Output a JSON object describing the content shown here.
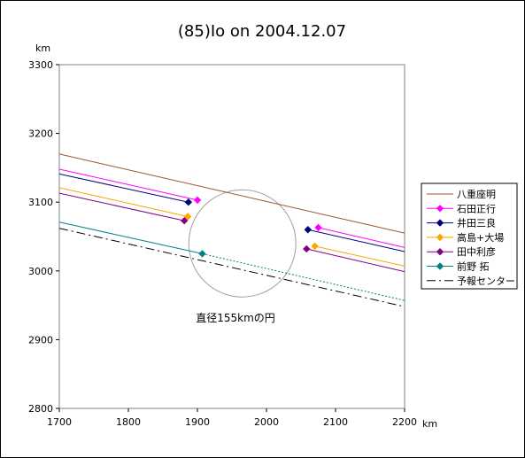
{
  "chart_data": {
    "type": "line",
    "title": "(85)Io on 2004.12.07",
    "xlabel": "km",
    "ylabel": "km",
    "xlim": [
      1700,
      2200
    ],
    "ylim": [
      2800,
      3300
    ],
    "xticks": [
      "1700",
      "1800",
      "1900",
      "2000",
      "2100",
      "2200"
    ],
    "yticks": [
      "2800",
      "2900",
      "3000",
      "3100",
      "3200",
      "3300"
    ],
    "grid": false,
    "legend_position": "right",
    "annotation": "直径155kmの円",
    "circle": {
      "center": [
        1965,
        3040
      ],
      "diameter": 155
    },
    "series": [
      {
        "name": "八重座明",
        "color": "#A0522D",
        "marker": "none",
        "segments": [
          {
            "x": [
              1700,
              2200
            ],
            "y": [
              3170,
              3055
            ]
          }
        ]
      },
      {
        "name": "石田正行",
        "color": "#FF00FF",
        "marker": "diamond",
        "segments": [
          {
            "x": [
              1700,
              1900
            ],
            "y": [
              3148,
              3103
            ]
          },
          {
            "x": [
              2075,
              2200
            ],
            "y": [
              3063,
              3034
            ]
          }
        ]
      },
      {
        "name": "井田三良",
        "color": "#000080",
        "marker": "diamond",
        "segments": [
          {
            "x": [
              1700,
              1887
            ],
            "y": [
              3141,
              3100
            ]
          },
          {
            "x": [
              2060,
              2200
            ],
            "y": [
              3060,
              3028
            ]
          }
        ]
      },
      {
        "name": "高島+大場",
        "color": "#FFA500",
        "marker": "diamond",
        "segments": [
          {
            "x": [
              1700,
              1886
            ],
            "y": [
              3121,
              3079
            ]
          },
          {
            "x": [
              2070,
              2200
            ],
            "y": [
              3036,
              3007
            ]
          }
        ]
      },
      {
        "name": "田中利彦",
        "color": "#800080",
        "marker": "diamond",
        "segments": [
          {
            "x": [
              1700,
              1881
            ],
            "y": [
              3113,
              3073
            ]
          },
          {
            "x": [
              2058,
              2200
            ],
            "y": [
              3032,
              2999
            ]
          }
        ]
      },
      {
        "name": "前野 拓",
        "color": "#008080",
        "marker": "diamond",
        "segments": [
          {
            "x": [
              1700,
              1907
            ],
            "y": [
              3071,
              3025
            ]
          }
        ],
        "continuation": {
          "x": [
            1907,
            2200
          ],
          "y": [
            3025,
            2957
          ],
          "dash": "dotted"
        }
      },
      {
        "name": "予報センター",
        "color": "#000000",
        "marker": "none",
        "dash": "dashdot",
        "segments": [
          {
            "x": [
              1700,
              2200
            ],
            "y": [
              3062,
              2948
            ]
          }
        ]
      }
    ]
  }
}
